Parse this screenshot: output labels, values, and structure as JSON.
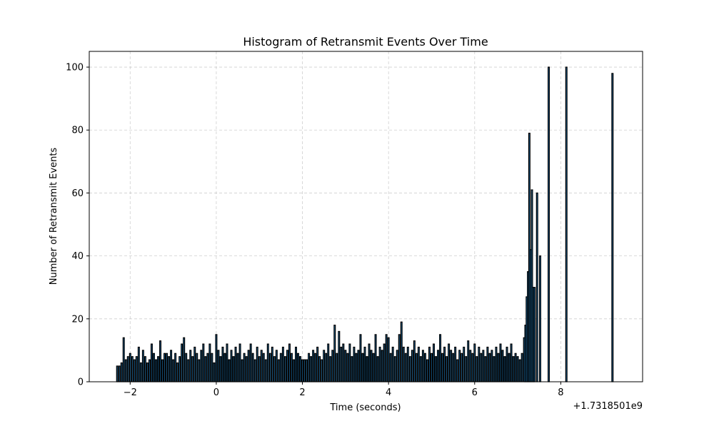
{
  "chart_data": {
    "type": "bar",
    "title": "Histogram of Retransmit Events Over Time",
    "xlabel": "Time (seconds)",
    "ylabel": "Number of Retransmit Events",
    "x_offset_label": "+1.7318501e9",
    "xlim": [
      -2.95,
      9.9
    ],
    "ylim": [
      0,
      105
    ],
    "x_ticks": [
      -2,
      0,
      2,
      4,
      6,
      8
    ],
    "x_tick_labels": [
      "−2",
      "0",
      "2",
      "4",
      "6",
      "8"
    ],
    "y_ticks": [
      0,
      20,
      40,
      60,
      80,
      100
    ],
    "y_tick_labels": [
      "0",
      "20",
      "40",
      "60",
      "80",
      "100"
    ],
    "grid": true,
    "bar_fill_color": "#1f77b4",
    "bar_edge_color": "#000000",
    "grid_color": "#b0b0b0",
    "bin_width": 0.03,
    "bins": [
      {
        "x": -2.3,
        "value": 5
      },
      {
        "x": -2.25,
        "value": 5
      },
      {
        "x": -2.2,
        "value": 6
      },
      {
        "x": -2.15,
        "value": 14
      },
      {
        "x": -2.1,
        "value": 7
      },
      {
        "x": -2.05,
        "value": 8
      },
      {
        "x": -2.0,
        "value": 9
      },
      {
        "x": -1.95,
        "value": 8
      },
      {
        "x": -1.9,
        "value": 7
      },
      {
        "x": -1.85,
        "value": 8
      },
      {
        "x": -1.8,
        "value": 11
      },
      {
        "x": -1.75,
        "value": 6
      },
      {
        "x": -1.7,
        "value": 10
      },
      {
        "x": -1.65,
        "value": 8
      },
      {
        "x": -1.6,
        "value": 6
      },
      {
        "x": -1.55,
        "value": 7
      },
      {
        "x": -1.5,
        "value": 12
      },
      {
        "x": -1.45,
        "value": 9
      },
      {
        "x": -1.4,
        "value": 7
      },
      {
        "x": -1.35,
        "value": 8
      },
      {
        "x": -1.3,
        "value": 13
      },
      {
        "x": -1.25,
        "value": 7
      },
      {
        "x": -1.2,
        "value": 9
      },
      {
        "x": -1.15,
        "value": 9
      },
      {
        "x": -1.1,
        "value": 8
      },
      {
        "x": -1.05,
        "value": 10
      },
      {
        "x": -1.0,
        "value": 7
      },
      {
        "x": -0.95,
        "value": 9
      },
      {
        "x": -0.9,
        "value": 6
      },
      {
        "x": -0.85,
        "value": 8
      },
      {
        "x": -0.8,
        "value": 12
      },
      {
        "x": -0.75,
        "value": 14
      },
      {
        "x": -0.7,
        "value": 9
      },
      {
        "x": -0.65,
        "value": 7
      },
      {
        "x": -0.6,
        "value": 10
      },
      {
        "x": -0.55,
        "value": 8
      },
      {
        "x": -0.5,
        "value": 11
      },
      {
        "x": -0.45,
        "value": 9
      },
      {
        "x": -0.4,
        "value": 7
      },
      {
        "x": -0.35,
        "value": 10
      },
      {
        "x": -0.3,
        "value": 12
      },
      {
        "x": -0.25,
        "value": 8
      },
      {
        "x": -0.2,
        "value": 9
      },
      {
        "x": -0.15,
        "value": 12
      },
      {
        "x": -0.1,
        "value": 9
      },
      {
        "x": -0.05,
        "value": 6
      },
      {
        "x": 0.0,
        "value": 15
      },
      {
        "x": 0.05,
        "value": 10
      },
      {
        "x": 0.1,
        "value": 8
      },
      {
        "x": 0.15,
        "value": 11
      },
      {
        "x": 0.2,
        "value": 9
      },
      {
        "x": 0.25,
        "value": 12
      },
      {
        "x": 0.3,
        "value": 7
      },
      {
        "x": 0.35,
        "value": 10
      },
      {
        "x": 0.4,
        "value": 8
      },
      {
        "x": 0.45,
        "value": 11
      },
      {
        "x": 0.5,
        "value": 9
      },
      {
        "x": 0.55,
        "value": 12
      },
      {
        "x": 0.6,
        "value": 7
      },
      {
        "x": 0.65,
        "value": 9
      },
      {
        "x": 0.7,
        "value": 8
      },
      {
        "x": 0.75,
        "value": 10
      },
      {
        "x": 0.8,
        "value": 12
      },
      {
        "x": 0.85,
        "value": 9
      },
      {
        "x": 0.9,
        "value": 7
      },
      {
        "x": 0.95,
        "value": 11
      },
      {
        "x": 1.0,
        "value": 8
      },
      {
        "x": 1.05,
        "value": 10
      },
      {
        "x": 1.1,
        "value": 9
      },
      {
        "x": 1.15,
        "value": 7
      },
      {
        "x": 1.2,
        "value": 12
      },
      {
        "x": 1.25,
        "value": 9
      },
      {
        "x": 1.3,
        "value": 11
      },
      {
        "x": 1.35,
        "value": 8
      },
      {
        "x": 1.4,
        "value": 10
      },
      {
        "x": 1.45,
        "value": 7
      },
      {
        "x": 1.5,
        "value": 9
      },
      {
        "x": 1.55,
        "value": 11
      },
      {
        "x": 1.6,
        "value": 8
      },
      {
        "x": 1.65,
        "value": 10
      },
      {
        "x": 1.7,
        "value": 12
      },
      {
        "x": 1.75,
        "value": 9
      },
      {
        "x": 1.8,
        "value": 7
      },
      {
        "x": 1.85,
        "value": 11
      },
      {
        "x": 1.9,
        "value": 9
      },
      {
        "x": 1.95,
        "value": 8
      },
      {
        "x": 2.0,
        "value": 7
      },
      {
        "x": 2.05,
        "value": 7
      },
      {
        "x": 2.1,
        "value": 7
      },
      {
        "x": 2.15,
        "value": 9
      },
      {
        "x": 2.2,
        "value": 8
      },
      {
        "x": 2.25,
        "value": 10
      },
      {
        "x": 2.3,
        "value": 9
      },
      {
        "x": 2.35,
        "value": 11
      },
      {
        "x": 2.4,
        "value": 8
      },
      {
        "x": 2.45,
        "value": 7
      },
      {
        "x": 2.5,
        "value": 10
      },
      {
        "x": 2.55,
        "value": 9
      },
      {
        "x": 2.6,
        "value": 12
      },
      {
        "x": 2.65,
        "value": 8
      },
      {
        "x": 2.7,
        "value": 10
      },
      {
        "x": 2.75,
        "value": 18
      },
      {
        "x": 2.8,
        "value": 9
      },
      {
        "x": 2.85,
        "value": 16
      },
      {
        "x": 2.9,
        "value": 11
      },
      {
        "x": 2.95,
        "value": 12
      },
      {
        "x": 3.0,
        "value": 10
      },
      {
        "x": 3.05,
        "value": 9
      },
      {
        "x": 3.1,
        "value": 12
      },
      {
        "x": 3.15,
        "value": 8
      },
      {
        "x": 3.2,
        "value": 11
      },
      {
        "x": 3.25,
        "value": 9
      },
      {
        "x": 3.3,
        "value": 10
      },
      {
        "x": 3.35,
        "value": 15
      },
      {
        "x": 3.4,
        "value": 9
      },
      {
        "x": 3.45,
        "value": 11
      },
      {
        "x": 3.5,
        "value": 8
      },
      {
        "x": 3.55,
        "value": 12
      },
      {
        "x": 3.6,
        "value": 10
      },
      {
        "x": 3.65,
        "value": 9
      },
      {
        "x": 3.7,
        "value": 15
      },
      {
        "x": 3.75,
        "value": 8
      },
      {
        "x": 3.8,
        "value": 11
      },
      {
        "x": 3.85,
        "value": 10
      },
      {
        "x": 3.9,
        "value": 12
      },
      {
        "x": 3.95,
        "value": 15
      },
      {
        "x": 4.0,
        "value": 14
      },
      {
        "x": 4.05,
        "value": 9
      },
      {
        "x": 4.1,
        "value": 11
      },
      {
        "x": 4.15,
        "value": 8
      },
      {
        "x": 4.2,
        "value": 10
      },
      {
        "x": 4.25,
        "value": 15
      },
      {
        "x": 4.3,
        "value": 19
      },
      {
        "x": 4.35,
        "value": 11
      },
      {
        "x": 4.4,
        "value": 9
      },
      {
        "x": 4.45,
        "value": 11
      },
      {
        "x": 4.5,
        "value": 8
      },
      {
        "x": 4.55,
        "value": 10
      },
      {
        "x": 4.6,
        "value": 13
      },
      {
        "x": 4.65,
        "value": 9
      },
      {
        "x": 4.7,
        "value": 11
      },
      {
        "x": 4.75,
        "value": 8
      },
      {
        "x": 4.8,
        "value": 10
      },
      {
        "x": 4.85,
        "value": 9
      },
      {
        "x": 4.9,
        "value": 7
      },
      {
        "x": 4.95,
        "value": 11
      },
      {
        "x": 5.0,
        "value": 9
      },
      {
        "x": 5.05,
        "value": 12
      },
      {
        "x": 5.1,
        "value": 8
      },
      {
        "x": 5.15,
        "value": 10
      },
      {
        "x": 5.2,
        "value": 15
      },
      {
        "x": 5.25,
        "value": 9
      },
      {
        "x": 5.3,
        "value": 11
      },
      {
        "x": 5.35,
        "value": 8
      },
      {
        "x": 5.4,
        "value": 12
      },
      {
        "x": 5.45,
        "value": 10
      },
      {
        "x": 5.5,
        "value": 9
      },
      {
        "x": 5.55,
        "value": 11
      },
      {
        "x": 5.6,
        "value": 7
      },
      {
        "x": 5.65,
        "value": 10
      },
      {
        "x": 5.7,
        "value": 9
      },
      {
        "x": 5.75,
        "value": 11
      },
      {
        "x": 5.8,
        "value": 8
      },
      {
        "x": 5.85,
        "value": 13
      },
      {
        "x": 5.9,
        "value": 10
      },
      {
        "x": 5.95,
        "value": 9
      },
      {
        "x": 6.0,
        "value": 12
      },
      {
        "x": 6.05,
        "value": 8
      },
      {
        "x": 6.1,
        "value": 11
      },
      {
        "x": 6.15,
        "value": 9
      },
      {
        "x": 6.2,
        "value": 10
      },
      {
        "x": 6.25,
        "value": 8
      },
      {
        "x": 6.3,
        "value": 11
      },
      {
        "x": 6.35,
        "value": 9
      },
      {
        "x": 6.4,
        "value": 10
      },
      {
        "x": 6.45,
        "value": 8
      },
      {
        "x": 6.5,
        "value": 11
      },
      {
        "x": 6.55,
        "value": 9
      },
      {
        "x": 6.6,
        "value": 12
      },
      {
        "x": 6.65,
        "value": 10
      },
      {
        "x": 6.7,
        "value": 8
      },
      {
        "x": 6.75,
        "value": 11
      },
      {
        "x": 6.8,
        "value": 9
      },
      {
        "x": 6.85,
        "value": 12
      },
      {
        "x": 6.9,
        "value": 8
      },
      {
        "x": 6.95,
        "value": 9
      },
      {
        "x": 7.0,
        "value": 8
      },
      {
        "x": 7.05,
        "value": 7
      },
      {
        "x": 7.1,
        "value": 9
      },
      {
        "x": 7.15,
        "value": 14
      },
      {
        "x": 7.18,
        "value": 18
      },
      {
        "x": 7.21,
        "value": 27
      },
      {
        "x": 7.24,
        "value": 35
      },
      {
        "x": 7.27,
        "value": 79
      },
      {
        "x": 7.3,
        "value": 42
      },
      {
        "x": 7.33,
        "value": 61
      },
      {
        "x": 7.36,
        "value": 30
      },
      {
        "x": 7.39,
        "value": 30
      },
      {
        "x": 7.45,
        "value": 60
      },
      {
        "x": 7.52,
        "value": 40
      },
      {
        "x": 7.72,
        "value": 100
      },
      {
        "x": 8.13,
        "value": 100
      },
      {
        "x": 9.2,
        "value": 98
      }
    ]
  }
}
